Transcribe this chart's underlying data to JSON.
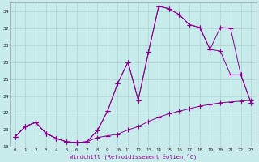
{
  "xlabel": "Windchill (Refroidissement éolien,°C)",
  "bg_color": "#c8ecec",
  "line_color": "#8b008b",
  "grid_color": "#b0d0d0",
  "xlim": [
    -0.5,
    23.5
  ],
  "ylim": [
    18,
    35
  ],
  "yticks": [
    18,
    20,
    22,
    24,
    26,
    28,
    30,
    32,
    34
  ],
  "xticks": [
    0,
    1,
    2,
    3,
    4,
    5,
    6,
    7,
    8,
    9,
    10,
    11,
    12,
    13,
    14,
    15,
    16,
    17,
    18,
    19,
    20,
    21,
    22,
    23
  ],
  "line1_x": [
    0,
    1,
    2,
    3,
    4,
    5,
    6,
    7,
    8,
    9,
    10,
    11,
    12,
    13,
    14,
    15,
    16,
    17,
    18,
    19,
    20,
    21,
    22,
    23
  ],
  "line1_y": [
    19.2,
    20.4,
    20.9,
    19.6,
    19.0,
    18.6,
    18.5,
    18.6,
    19.1,
    19.3,
    19.5,
    20.0,
    20.4,
    21.0,
    21.5,
    21.9,
    22.2,
    22.5,
    22.8,
    23.0,
    23.2,
    23.3,
    23.4,
    23.5
  ],
  "line2_x": [
    0,
    1,
    2,
    3,
    4,
    5,
    6,
    7,
    8,
    9,
    10,
    11,
    12,
    13,
    14,
    15,
    16,
    17,
    18,
    19,
    20,
    21,
    22,
    23
  ],
  "line2_y": [
    19.2,
    20.4,
    20.9,
    19.6,
    19.0,
    18.6,
    18.5,
    18.6,
    19.9,
    22.2,
    25.5,
    28.0,
    23.5,
    29.2,
    34.6,
    34.3,
    33.6,
    32.4,
    32.1,
    29.5,
    32.1,
    32.0,
    26.5,
    23.2
  ],
  "line3_x": [
    0,
    1,
    2,
    3,
    4,
    5,
    6,
    7,
    8,
    9,
    10,
    11,
    12,
    13,
    14,
    15,
    16,
    17,
    18,
    19,
    20,
    21,
    22,
    23
  ],
  "line3_y": [
    19.2,
    20.4,
    20.9,
    19.6,
    19.0,
    18.6,
    18.5,
    18.6,
    19.9,
    22.2,
    25.5,
    28.0,
    23.5,
    29.2,
    34.6,
    34.3,
    33.6,
    32.4,
    32.1,
    29.5,
    29.3,
    26.5,
    26.5,
    23.2
  ]
}
